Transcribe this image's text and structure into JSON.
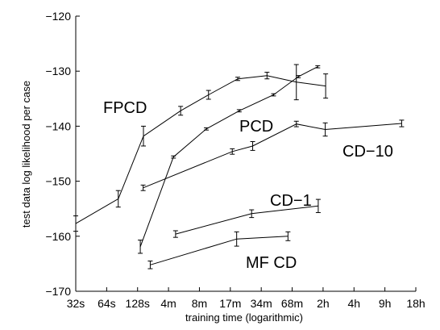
{
  "chart_data": {
    "type": "line",
    "xlabel": "training time (logarithmic)",
    "ylabel": "test data log likelihood per case",
    "x_ticks": [
      "32s",
      "64s",
      "128s",
      "4m",
      "8m",
      "17m",
      "34m",
      "68m",
      "2h",
      "4h",
      "9h",
      "18h"
    ],
    "x_tick_seconds": [
      32,
      64,
      128,
      256,
      512,
      1024,
      2048,
      4096,
      8192,
      16384,
      32768,
      65536
    ],
    "xlim_seconds": [
      32,
      65536
    ],
    "ylim": [
      -170,
      -120
    ],
    "y_ticks": [
      -170,
      -160,
      -150,
      -140,
      -130,
      -120
    ],
    "grid": false,
    "legend": "none (series labeled inline)",
    "series": [
      {
        "name": "FPCD",
        "points": [
          {
            "x": 32,
            "y": -157.7,
            "err": 1.4
          },
          {
            "x": 83,
            "y": -153.2,
            "err": 1.5
          },
          {
            "x": 146,
            "y": -141.8,
            "err": 1.8
          },
          {
            "x": 336,
            "y": -137.2,
            "err": 0.8
          },
          {
            "x": 628,
            "y": -134.3,
            "err": 0.8
          },
          {
            "x": 1210,
            "y": -131.4,
            "err": 0.3
          },
          {
            "x": 2330,
            "y": -130.8,
            "err": 0.6
          },
          {
            "x": 4500,
            "y": -132.0,
            "err": 3.2
          },
          {
            "x": 8680,
            "y": -132.7,
            "err": 2.2
          }
        ]
      },
      {
        "name": "PCD",
        "points": [
          {
            "x": 136,
            "y": -161.9,
            "err": 1.2
          },
          {
            "x": 286,
            "y": -145.6,
            "err": 0.2
          },
          {
            "x": 598,
            "y": -140.5,
            "err": 0.2
          },
          {
            "x": 1250,
            "y": -137.2,
            "err": 0.2
          },
          {
            "x": 2700,
            "y": -134.3,
            "err": 0.2
          },
          {
            "x": 4700,
            "y": -131.0,
            "err": 0.2
          },
          {
            "x": 7270,
            "y": -129.2,
            "err": 0.2
          }
        ]
      },
      {
        "name": "CD-10",
        "points": [
          {
            "x": 145,
            "y": -151.2,
            "err": 0.5
          },
          {
            "x": 1070,
            "y": -144.6,
            "err": 0.5
          },
          {
            "x": 1690,
            "y": -143.6,
            "err": 0.8
          },
          {
            "x": 4500,
            "y": -139.6,
            "err": 0.5
          },
          {
            "x": 8600,
            "y": -140.6,
            "err": 1.2
          },
          {
            "x": 47700,
            "y": -139.5,
            "err": 0.6
          }
        ]
      },
      {
        "name": "CD-1",
        "points": [
          {
            "x": 300,
            "y": -159.6,
            "err": 0.6
          },
          {
            "x": 1650,
            "y": -155.9,
            "err": 0.7
          },
          {
            "x": 7350,
            "y": -154.5,
            "err": 1.2
          }
        ]
      },
      {
        "name": "MF CD",
        "points": [
          {
            "x": 170,
            "y": -165.2,
            "err": 0.7
          },
          {
            "x": 1180,
            "y": -160.5,
            "err": 1.3
          },
          {
            "x": 3730,
            "y": -160.0,
            "err": 0.8
          }
        ]
      }
    ]
  }
}
